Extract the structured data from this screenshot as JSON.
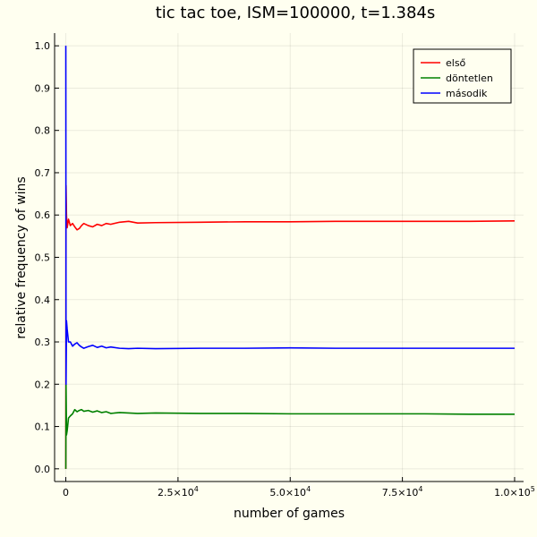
{
  "chart_data": {
    "type": "line",
    "title": "tic tac toe, ISM=100000, t=1.384s",
    "xlabel": "number of games",
    "ylabel": "relative frequency of wins",
    "xlim": [
      -2500,
      102000
    ],
    "ylim": [
      -0.03,
      1.03
    ],
    "grid": true,
    "legend_position": "top-right",
    "x_ticks": [
      {
        "value": 0,
        "mant": "0",
        "exp": ""
      },
      {
        "value": 25000,
        "mant": "2.5×10",
        "exp": "4"
      },
      {
        "value": 50000,
        "mant": "5.0×10",
        "exp": "4"
      },
      {
        "value": 75000,
        "mant": "7.5×10",
        "exp": "4"
      },
      {
        "value": 100000,
        "mant": "1.0×10",
        "exp": "5"
      }
    ],
    "y_ticks": [
      {
        "value": 0.0,
        "label": "0.0"
      },
      {
        "value": 0.1,
        "label": "0.1"
      },
      {
        "value": 0.2,
        "label": "0.2"
      },
      {
        "value": 0.3,
        "label": "0.3"
      },
      {
        "value": 0.4,
        "label": "0.4"
      },
      {
        "value": 0.5,
        "label": "0.5"
      },
      {
        "value": 0.6,
        "label": "0.6"
      },
      {
        "value": 0.7,
        "label": "0.7"
      },
      {
        "value": 0.8,
        "label": "0.8"
      },
      {
        "value": 0.9,
        "label": "0.9"
      },
      {
        "value": 1.0,
        "label": "1.0"
      }
    ],
    "series": [
      {
        "name": "első",
        "color": "#ff0000",
        "x": [
          1,
          50,
          150,
          300,
          600,
          1000,
          1500,
          2000,
          2500,
          3000,
          3500,
          4000,
          5000,
          6000,
          7000,
          8000,
          9000,
          10000,
          12000,
          14000,
          16000,
          20000,
          30000,
          40000,
          50000,
          60000,
          70000,
          80000,
          90000,
          100000
        ],
        "y": [
          0.0,
          0.67,
          0.6,
          0.57,
          0.59,
          0.575,
          0.58,
          0.572,
          0.565,
          0.568,
          0.575,
          0.58,
          0.575,
          0.572,
          0.578,
          0.575,
          0.58,
          0.578,
          0.583,
          0.585,
          0.581,
          0.582,
          0.583,
          0.584,
          0.584,
          0.585,
          0.585,
          0.585,
          0.585,
          0.586
        ]
      },
      {
        "name": "döntetlen",
        "color": "#008000",
        "x": [
          1,
          50,
          150,
          300,
          600,
          1000,
          1500,
          2000,
          2500,
          3000,
          3500,
          4000,
          5000,
          6000,
          7000,
          8000,
          9000,
          10000,
          12000,
          14000,
          16000,
          20000,
          30000,
          40000,
          50000,
          60000,
          70000,
          80000,
          90000,
          100000
        ],
        "y": [
          0.0,
          0.2,
          0.08,
          0.09,
          0.12,
          0.125,
          0.13,
          0.14,
          0.135,
          0.138,
          0.14,
          0.136,
          0.138,
          0.134,
          0.137,
          0.133,
          0.135,
          0.131,
          0.133,
          0.132,
          0.131,
          0.132,
          0.131,
          0.131,
          0.13,
          0.13,
          0.13,
          0.13,
          0.129,
          0.129
        ]
      },
      {
        "name": "második",
        "color": "#0000ff",
        "x": [
          1,
          50,
          150,
          300,
          600,
          1000,
          1500,
          2000,
          2500,
          3000,
          3500,
          4000,
          5000,
          6000,
          7000,
          8000,
          9000,
          10000,
          12000,
          14000,
          16000,
          20000,
          30000,
          40000,
          50000,
          60000,
          70000,
          80000,
          90000,
          100000
        ],
        "y": [
          1.0,
          0.2,
          0.35,
          0.33,
          0.3,
          0.3,
          0.29,
          0.295,
          0.298,
          0.292,
          0.288,
          0.285,
          0.289,
          0.292,
          0.287,
          0.29,
          0.286,
          0.288,
          0.285,
          0.284,
          0.285,
          0.284,
          0.285,
          0.285,
          0.286,
          0.285,
          0.285,
          0.285,
          0.285,
          0.285
        ]
      }
    ]
  }
}
